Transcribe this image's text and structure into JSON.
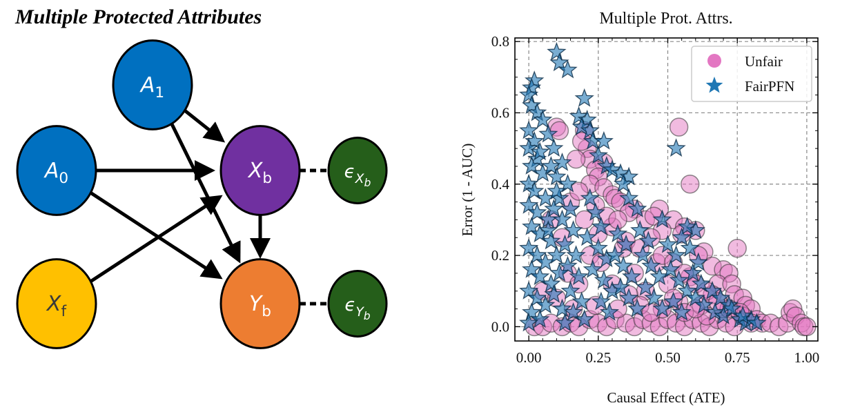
{
  "diagram": {
    "title": "Multiple Protected Attributes",
    "colors": {
      "protected": "#0070C0",
      "mediator": "#7030A0",
      "fair": "#FFC000",
      "outcome": "#ED7D31",
      "noise": "#255E1A",
      "stroke": "#000000"
    },
    "nodes": [
      {
        "id": "A1",
        "main": "A",
        "sub": "1",
        "kind": "protected",
        "text_color": "#ffffff"
      },
      {
        "id": "A0",
        "main": "A",
        "sub": "0",
        "kind": "protected",
        "text_color": "#ffffff"
      },
      {
        "id": "Xb",
        "main": "X",
        "sub": "b",
        "kind": "mediator",
        "text_color": "#ffffff"
      },
      {
        "id": "eXb",
        "main": "ϵ",
        "sub": "X",
        "subsub": "b",
        "kind": "noise",
        "text_color": "#ffffff"
      },
      {
        "id": "Xf",
        "main": "X",
        "sub": "f",
        "kind": "fair",
        "text_color": "#3a3a3a"
      },
      {
        "id": "Yb",
        "main": "Y",
        "sub": "b",
        "kind": "outcome",
        "text_color": "#ffffff"
      },
      {
        "id": "eYb",
        "main": "ϵ",
        "sub": "Y",
        "subsub": "b",
        "kind": "noise",
        "text_color": "#ffffff"
      }
    ],
    "edges": [
      {
        "from": "A1",
        "to": "Xb",
        "style": "arrow"
      },
      {
        "from": "A1",
        "to": "Yb",
        "style": "arrow"
      },
      {
        "from": "A0",
        "to": "Xb",
        "style": "arrow"
      },
      {
        "from": "A0",
        "to": "Yb",
        "style": "arrow"
      },
      {
        "from": "Xf",
        "to": "Xb",
        "style": "arrow"
      },
      {
        "from": "Xb",
        "to": "Yb",
        "style": "arrow"
      },
      {
        "from": "Xb",
        "to": "eXb",
        "style": "dashed"
      },
      {
        "from": "Yb",
        "to": "eYb",
        "style": "dashed"
      }
    ]
  },
  "chart_data": {
    "type": "scatter",
    "title": "Multiple Prot. Attrs.",
    "xlabel": "Causal Effect (ATE)",
    "ylabel": "Error (1 - AUC)",
    "xlim": [
      -0.05,
      1.04
    ],
    "ylim": [
      -0.04,
      0.81
    ],
    "xticks": [
      0.0,
      0.25,
      0.5,
      0.75,
      1.0
    ],
    "xtick_labels": [
      "0.00",
      "0.25",
      "0.50",
      "0.75",
      "1.00"
    ],
    "yticks": [
      0.0,
      0.2,
      0.4,
      0.6,
      0.8
    ],
    "ytick_labels": [
      "0.0",
      "0.2",
      "0.4",
      "0.6",
      "0.8"
    ],
    "grid": true,
    "legend": {
      "placement": "top-right",
      "entries": [
        {
          "label": "Unfair",
          "marker": "circle",
          "color": "#E377C2"
        },
        {
          "label": "FairPFN",
          "marker": "star",
          "color": "#1F77B4"
        }
      ]
    },
    "series": [
      {
        "name": "Unfair",
        "marker": "circle",
        "color": "#E377C2",
        "alpha": 0.5,
        "points": [
          [
            0.1,
            0.56
          ],
          [
            0.11,
            0.55
          ],
          [
            0.2,
            0.55
          ],
          [
            0.21,
            0.5
          ],
          [
            0.19,
            0.52
          ],
          [
            0.22,
            0.47
          ],
          [
            0.17,
            0.47
          ],
          [
            0.27,
            0.46
          ],
          [
            0.24,
            0.44
          ],
          [
            0.25,
            0.42
          ],
          [
            0.22,
            0.4
          ],
          [
            0.27,
            0.39
          ],
          [
            0.3,
            0.37
          ],
          [
            0.31,
            0.36
          ],
          [
            0.33,
            0.35
          ],
          [
            0.38,
            0.33
          ],
          [
            0.36,
            0.32
          ],
          [
            0.47,
            0.33
          ],
          [
            0.54,
            0.56
          ],
          [
            0.58,
            0.4
          ],
          [
            0.42,
            0.3
          ],
          [
            0.45,
            0.31
          ],
          [
            0.52,
            0.3
          ],
          [
            0.56,
            0.28
          ],
          [
            0.6,
            0.27
          ],
          [
            0.55,
            0.26
          ],
          [
            0.48,
            0.27
          ],
          [
            0.63,
            0.21
          ],
          [
            0.61,
            0.2
          ],
          [
            0.75,
            0.22
          ],
          [
            0.66,
            0.17
          ],
          [
            0.7,
            0.16
          ],
          [
            0.72,
            0.15
          ],
          [
            0.68,
            0.12
          ],
          [
            0.73,
            0.12
          ],
          [
            0.74,
            0.09
          ],
          [
            0.77,
            0.08
          ],
          [
            0.78,
            0.06
          ],
          [
            0.8,
            0.05
          ],
          [
            0.82,
            0.02
          ],
          [
            0.84,
            0.01
          ],
          [
            0.87,
            0.01
          ],
          [
            0.9,
            0.0
          ],
          [
            0.93,
            0.01
          ],
          [
            0.94,
            0.04
          ],
          [
            0.95,
            0.05
          ],
          [
            0.96,
            0.03
          ],
          [
            0.98,
            0.01
          ],
          [
            0.99,
            0.0
          ],
          [
            1.0,
            0.0
          ],
          [
            0.02,
            0.0
          ],
          [
            0.05,
            0.0
          ],
          [
            0.08,
            0.01
          ],
          [
            0.12,
            0.0
          ],
          [
            0.15,
            0.01
          ],
          [
            0.18,
            0.0
          ],
          [
            0.22,
            0.02
          ],
          [
            0.25,
            0.01
          ],
          [
            0.28,
            0.0
          ],
          [
            0.31,
            0.02
          ],
          [
            0.35,
            0.01
          ],
          [
            0.38,
            0.0
          ],
          [
            0.41,
            0.02
          ],
          [
            0.44,
            0.01
          ],
          [
            0.47,
            0.0
          ],
          [
            0.5,
            0.02
          ],
          [
            0.53,
            0.01
          ],
          [
            0.56,
            0.0
          ],
          [
            0.59,
            0.02
          ],
          [
            0.62,
            0.01
          ],
          [
            0.65,
            0.0
          ],
          [
            0.68,
            0.02
          ],
          [
            0.71,
            0.01
          ],
          [
            0.74,
            0.0
          ],
          [
            0.77,
            0.03
          ],
          [
            0.8,
            0.01
          ],
          [
            0.05,
            0.1
          ],
          [
            0.1,
            0.08
          ],
          [
            0.14,
            0.15
          ],
          [
            0.18,
            0.12
          ],
          [
            0.22,
            0.2
          ],
          [
            0.26,
            0.18
          ],
          [
            0.3,
            0.12
          ],
          [
            0.34,
            0.22
          ],
          [
            0.38,
            0.15
          ],
          [
            0.42,
            0.1
          ],
          [
            0.46,
            0.18
          ],
          [
            0.5,
            0.12
          ],
          [
            0.54,
            0.07
          ],
          [
            0.58,
            0.14
          ],
          [
            0.62,
            0.06
          ],
          [
            0.66,
            0.09
          ],
          [
            0.7,
            0.05
          ],
          [
            0.2,
            0.3
          ],
          [
            0.25,
            0.26
          ],
          [
            0.3,
            0.28
          ],
          [
            0.35,
            0.24
          ],
          [
            0.4,
            0.22
          ],
          [
            0.44,
            0.25
          ],
          [
            0.48,
            0.2
          ],
          [
            0.52,
            0.18
          ],
          [
            0.56,
            0.15
          ],
          [
            0.6,
            0.12
          ],
          [
            0.64,
            0.1
          ],
          [
            0.15,
            0.35
          ],
          [
            0.18,
            0.38
          ],
          [
            0.24,
            0.34
          ],
          [
            0.28,
            0.31
          ],
          [
            0.32,
            0.3
          ],
          [
            0.12,
            0.25
          ],
          [
            0.08,
            0.3
          ],
          [
            0.16,
            0.05
          ],
          [
            0.24,
            0.06
          ],
          [
            0.32,
            0.05
          ],
          [
            0.4,
            0.06
          ],
          [
            0.48,
            0.05
          ],
          [
            0.56,
            0.04
          ],
          [
            0.64,
            0.03
          ],
          [
            0.72,
            0.05
          ],
          [
            0.36,
            0.09
          ],
          [
            0.44,
            0.04
          ],
          [
            0.52,
            0.08
          ],
          [
            0.6,
            0.05
          ],
          [
            0.68,
            0.07
          ],
          [
            0.76,
            0.04
          ]
        ]
      },
      {
        "name": "FairPFN",
        "marker": "star",
        "color": "#1F77B4",
        "alpha": 0.6,
        "points": [
          [
            0.1,
            0.77
          ],
          [
            0.11,
            0.74
          ],
          [
            0.14,
            0.72
          ],
          [
            0.02,
            0.69
          ],
          [
            0.01,
            0.67
          ],
          [
            0.0,
            0.65
          ],
          [
            0.01,
            0.62
          ],
          [
            0.03,
            0.6
          ],
          [
            0.2,
            0.64
          ],
          [
            0.18,
            0.59
          ],
          [
            0.21,
            0.58
          ],
          [
            0.19,
            0.56
          ],
          [
            0.22,
            0.55
          ],
          [
            0.23,
            0.52
          ],
          [
            0.53,
            0.5
          ],
          [
            0.27,
            0.52
          ],
          [
            0.25,
            0.48
          ],
          [
            0.28,
            0.45
          ],
          [
            0.3,
            0.44
          ],
          [
            0.33,
            0.43
          ],
          [
            0.36,
            0.42
          ],
          [
            0.34,
            0.4
          ],
          [
            0.36,
            0.36
          ],
          [
            0.39,
            0.33
          ],
          [
            0.48,
            0.3
          ],
          [
            0.6,
            0.27
          ],
          [
            0.57,
            0.28
          ],
          [
            0.55,
            0.25
          ],
          [
            0.0,
            0.55
          ],
          [
            0.02,
            0.52
          ],
          [
            0.0,
            0.5
          ],
          [
            0.03,
            0.47
          ],
          [
            0.01,
            0.45
          ],
          [
            0.05,
            0.43
          ],
          [
            0.0,
            0.4
          ],
          [
            0.02,
            0.38
          ],
          [
            0.06,
            0.36
          ],
          [
            0.0,
            0.34
          ],
          [
            0.03,
            0.32
          ],
          [
            0.07,
            0.3
          ],
          [
            0.01,
            0.28
          ],
          [
            0.04,
            0.26
          ],
          [
            0.08,
            0.24
          ],
          [
            0.0,
            0.22
          ],
          [
            0.03,
            0.2
          ],
          [
            0.06,
            0.18
          ],
          [
            0.01,
            0.16
          ],
          [
            0.04,
            0.14
          ],
          [
            0.08,
            0.12
          ],
          [
            0.0,
            0.1
          ],
          [
            0.03,
            0.08
          ],
          [
            0.06,
            0.06
          ],
          [
            0.01,
            0.04
          ],
          [
            0.04,
            0.02
          ],
          [
            0.0,
            0.01
          ],
          [
            0.09,
            0.5
          ],
          [
            0.12,
            0.46
          ],
          [
            0.1,
            0.42
          ],
          [
            0.14,
            0.4
          ],
          [
            0.11,
            0.36
          ],
          [
            0.15,
            0.33
          ],
          [
            0.12,
            0.3
          ],
          [
            0.16,
            0.27
          ],
          [
            0.13,
            0.23
          ],
          [
            0.17,
            0.2
          ],
          [
            0.14,
            0.17
          ],
          [
            0.18,
            0.14
          ],
          [
            0.15,
            0.1
          ],
          [
            0.19,
            0.07
          ],
          [
            0.16,
            0.04
          ],
          [
            0.2,
            0.02
          ],
          [
            0.22,
            0.36
          ],
          [
            0.24,
            0.32
          ],
          [
            0.26,
            0.28
          ],
          [
            0.21,
            0.25
          ],
          [
            0.25,
            0.22
          ],
          [
            0.28,
            0.19
          ],
          [
            0.23,
            0.16
          ],
          [
            0.27,
            0.13
          ],
          [
            0.3,
            0.1
          ],
          [
            0.26,
            0.07
          ],
          [
            0.29,
            0.04
          ],
          [
            0.32,
            0.26
          ],
          [
            0.35,
            0.23
          ],
          [
            0.31,
            0.2
          ],
          [
            0.34,
            0.17
          ],
          [
            0.37,
            0.14
          ],
          [
            0.33,
            0.11
          ],
          [
            0.36,
            0.08
          ],
          [
            0.39,
            0.05
          ],
          [
            0.4,
            0.27
          ],
          [
            0.43,
            0.24
          ],
          [
            0.41,
            0.2
          ],
          [
            0.44,
            0.17
          ],
          [
            0.47,
            0.14
          ],
          [
            0.42,
            0.11
          ],
          [
            0.45,
            0.08
          ],
          [
            0.48,
            0.05
          ],
          [
            0.5,
            0.23
          ],
          [
            0.53,
            0.2
          ],
          [
            0.51,
            0.16
          ],
          [
            0.54,
            0.13
          ],
          [
            0.57,
            0.1
          ],
          [
            0.52,
            0.07
          ],
          [
            0.55,
            0.04
          ],
          [
            0.58,
            0.22
          ],
          [
            0.61,
            0.18
          ],
          [
            0.59,
            0.15
          ],
          [
            0.62,
            0.12
          ],
          [
            0.6,
            0.08
          ],
          [
            0.63,
            0.06
          ],
          [
            0.66,
            0.1
          ],
          [
            0.69,
            0.08
          ],
          [
            0.72,
            0.06
          ],
          [
            0.67,
            0.04
          ],
          [
            0.7,
            0.03
          ],
          [
            0.73,
            0.05
          ],
          [
            0.76,
            0.02
          ],
          [
            0.78,
            0.01
          ],
          [
            0.8,
            0.02
          ],
          [
            0.82,
            0.01
          ],
          [
            0.77,
            0.03
          ],
          [
            0.05,
            0.58
          ],
          [
            0.07,
            0.54
          ],
          [
            0.04,
            0.49
          ],
          [
            0.08,
            0.45
          ],
          [
            0.1,
            0.38
          ],
          [
            0.09,
            0.33
          ],
          [
            0.07,
            0.27
          ],
          [
            0.1,
            0.2
          ],
          [
            0.11,
            0.15
          ],
          [
            0.09,
            0.09
          ],
          [
            0.12,
            0.05
          ],
          [
            0.13,
            0.01
          ]
        ]
      }
    ]
  }
}
